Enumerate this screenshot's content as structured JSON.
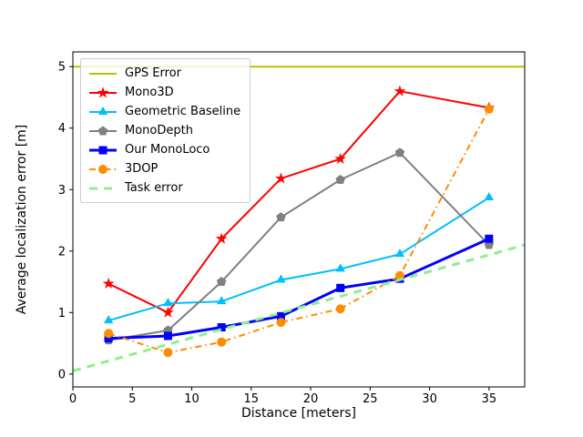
{
  "figure": {
    "background": "#ffffff",
    "spine_color": "#000000"
  },
  "chart_data": {
    "type": "line",
    "title": "",
    "xlabel": "Distance [meters]",
    "ylabel": "Average localization error [m]",
    "xlim": [
      0,
      38
    ],
    "ylim": [
      -0.21,
      5.24
    ],
    "xticks": [
      0,
      5,
      10,
      15,
      20,
      25,
      30,
      35
    ],
    "yticks": [
      0,
      1,
      2,
      3,
      4,
      5
    ],
    "grid": false,
    "legend_position": "upper left",
    "series": [
      {
        "name": "GPS Error",
        "color": "#bfbf00",
        "linestyle": "solid",
        "linewidth": 2,
        "marker": "none",
        "x": [
          0,
          38
        ],
        "y": [
          5,
          5
        ]
      },
      {
        "name": "Mono3D",
        "color": "#ff0000",
        "linestyle": "solid",
        "linewidth": 2,
        "marker": "star",
        "x": [
          3,
          8,
          12.5,
          17.5,
          22.5,
          27.5,
          35
        ],
        "y": [
          1.47,
          1.0,
          2.2,
          3.18,
          3.5,
          4.6,
          4.33
        ]
      },
      {
        "name": "Geometric Baseline",
        "color": "#00bfff",
        "linestyle": "solid",
        "linewidth": 2,
        "marker": "triangle",
        "x": [
          3,
          8,
          12.5,
          17.5,
          22.5,
          27.5,
          35
        ],
        "y": [
          0.87,
          1.15,
          1.18,
          1.53,
          1.71,
          1.95,
          2.87
        ]
      },
      {
        "name": "MonoDepth",
        "color": "#808080",
        "linestyle": "solid",
        "linewidth": 2,
        "marker": "pentagon",
        "x": [
          3,
          8,
          12.5,
          17.5,
          22.5,
          27.5,
          35
        ],
        "y": [
          0.55,
          0.71,
          1.5,
          2.55,
          3.16,
          3.6,
          2.1
        ]
      },
      {
        "name": "Our MonoLoco",
        "color": "#0000ff",
        "linestyle": "solid",
        "linewidth": 3,
        "marker": "square",
        "x": [
          3,
          8,
          12.5,
          17.5,
          22.5,
          27.5,
          35
        ],
        "y": [
          0.58,
          0.62,
          0.76,
          0.94,
          1.4,
          1.55,
          2.2
        ]
      },
      {
        "name": "3DOP",
        "color": "#ff8c00",
        "linestyle": "dashdot",
        "linewidth": 2,
        "marker": "circle",
        "x": [
          3,
          8,
          12.5,
          17.5,
          22.5,
          27.5,
          35
        ],
        "y": [
          0.66,
          0.35,
          0.52,
          0.84,
          1.06,
          1.6,
          4.31
        ]
      },
      {
        "name": "Task error",
        "color": "#90ee90",
        "linestyle": "dashed",
        "linewidth": 3,
        "marker": "none",
        "x": [
          0,
          38
        ],
        "y": [
          0.05,
          2.1
        ]
      }
    ]
  }
}
